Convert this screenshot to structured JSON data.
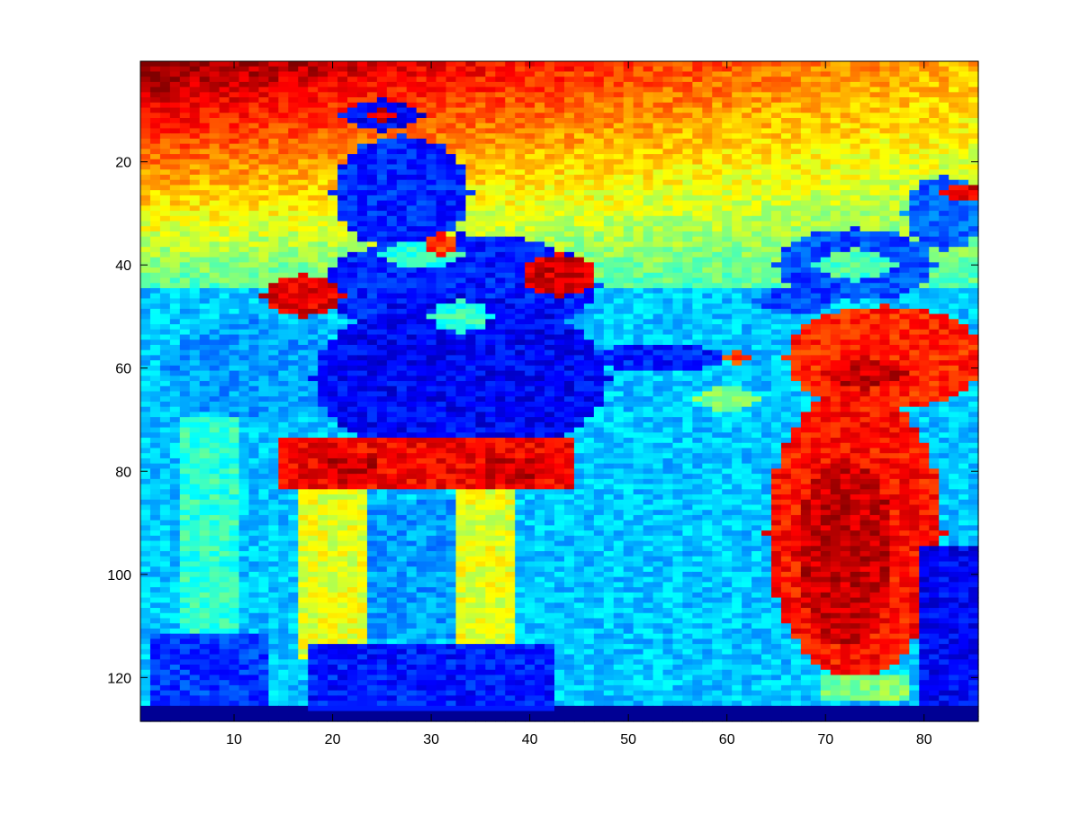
{
  "chart_data": {
    "type": "heatmap",
    "title": "",
    "xlabel": "",
    "ylabel": "",
    "colormap": "jet",
    "grid": false,
    "legend": "none",
    "xlim": [
      0.5,
      85.5
    ],
    "ylim": [
      128.5,
      0.5
    ],
    "y_direction": "reversed",
    "cols": 85,
    "rows": 128,
    "x_ticks": [
      10,
      20,
      30,
      40,
      50,
      60,
      70,
      80
    ],
    "y_ticks": [
      20,
      40,
      60,
      80,
      100,
      120
    ],
    "value_range": [
      0,
      1
    ],
    "background_gradient": {
      "top_left": 1.0,
      "top_right": 0.7,
      "horizon_row": 44,
      "horizon_value": 0.46,
      "lower_value": 0.35
    },
    "regions": [
      {
        "kind": "rect",
        "c": [
          1,
          85
        ],
        "r": [
          45,
          128
        ],
        "v": 0.32
      },
      {
        "kind": "rect",
        "c": [
          1,
          85
        ],
        "r": [
          126,
          128
        ],
        "v": 0.02
      },
      {
        "kind": "ellipse",
        "cx": 12,
        "cy": 60,
        "rx": 9,
        "ry": 10,
        "v": 0.28
      },
      {
        "kind": "ellipse",
        "cx": 33,
        "cy": 44,
        "rx": 14,
        "ry": 10,
        "v": 0.15
      },
      {
        "kind": "ellipse",
        "cx": 33,
        "cy": 62,
        "rx": 15,
        "ry": 16,
        "v": 0.12
      },
      {
        "kind": "ellipse",
        "cx": 27,
        "cy": 26,
        "rx": 7,
        "ry": 11,
        "v": 0.16
      },
      {
        "kind": "ellipse",
        "cx": 25,
        "cy": 11,
        "rx": 4,
        "ry": 3,
        "v": 0.12
      },
      {
        "kind": "ellipse",
        "cx": 33,
        "cy": 50,
        "rx": 3,
        "ry": 3,
        "v": 0.42
      },
      {
        "kind": "ellipse",
        "cx": 29,
        "cy": 38,
        "rx": 4,
        "ry": 2.5,
        "v": 0.42
      },
      {
        "kind": "ellipse",
        "cx": 17,
        "cy": 46,
        "rx": 4,
        "ry": 4,
        "v": 0.9
      },
      {
        "kind": "ellipse",
        "cx": 43,
        "cy": 42,
        "rx": 3.5,
        "ry": 4,
        "v": 0.92
      },
      {
        "kind": "ellipse",
        "cx": 25,
        "cy": 11,
        "rx": 1.8,
        "ry": 1,
        "v": 0.9
      },
      {
        "kind": "ellipse",
        "cx": 31,
        "cy": 36,
        "rx": 1.5,
        "ry": 2.5,
        "v": 0.82
      },
      {
        "kind": "ellipse",
        "cx": 53,
        "cy": 58,
        "rx": 7,
        "ry": 2.5,
        "v": 0.15
      },
      {
        "kind": "ellipse",
        "cx": 60,
        "cy": 66,
        "rx": 3,
        "ry": 2.5,
        "v": 0.5
      },
      {
        "kind": "ellipse",
        "cx": 61,
        "cy": 58,
        "rx": 1.2,
        "ry": 1,
        "v": 0.8
      },
      {
        "kind": "rect",
        "c": [
          15,
          44
        ],
        "r": [
          74,
          83
        ],
        "v": 0.88
      },
      {
        "kind": "rect",
        "c": [
          20,
          24
        ],
        "r": [
          77,
          82
        ],
        "v": 0.93
      },
      {
        "kind": "rect",
        "c": [
          36,
          40
        ],
        "r": [
          78,
          82
        ],
        "v": 0.93
      },
      {
        "kind": "rect",
        "c": [
          17,
          23
        ],
        "r": [
          84,
          116
        ],
        "v": 0.6
      },
      {
        "kind": "rect",
        "c": [
          33,
          38
        ],
        "r": [
          84,
          116
        ],
        "v": 0.6
      },
      {
        "kind": "rect",
        "c": [
          24,
          32
        ],
        "r": [
          86,
          112
        ],
        "v": 0.28
      },
      {
        "kind": "rect",
        "c": [
          5,
          10
        ],
        "r": [
          70,
          122
        ],
        "v": 0.42
      },
      {
        "kind": "rect",
        "c": [
          2,
          13
        ],
        "r": [
          112,
          125
        ],
        "v": 0.18
      },
      {
        "kind": "rect",
        "c": [
          18,
          42
        ],
        "r": [
          114,
          126
        ],
        "v": 0.15
      },
      {
        "kind": "ellipse",
        "cx": 73,
        "cy": 40,
        "rx": 8,
        "ry": 7,
        "v": 0.2
      },
      {
        "kind": "ellipse",
        "cx": 73,
        "cy": 40,
        "rx": 4,
        "ry": 3,
        "v": 0.45
      },
      {
        "kind": "ellipse",
        "cx": 82,
        "cy": 30,
        "rx": 4,
        "ry": 7,
        "v": 0.22
      },
      {
        "kind": "ellipse",
        "cx": 84,
        "cy": 26,
        "rx": 2,
        "ry": 1.5,
        "v": 0.9
      },
      {
        "kind": "ellipse",
        "cx": 67,
        "cy": 47,
        "rx": 4,
        "ry": 2.5,
        "v": 0.2
      },
      {
        "kind": "ellipse",
        "cx": 76,
        "cy": 58,
        "rx": 10,
        "ry": 10,
        "v": 0.84
      },
      {
        "kind": "ellipse",
        "cx": 74,
        "cy": 61,
        "rx": 4,
        "ry": 3,
        "v": 0.93
      },
      {
        "kind": "ellipse",
        "cx": 73,
        "cy": 92,
        "rx": 9,
        "ry": 28,
        "v": 0.86
      },
      {
        "kind": "ellipse",
        "cx": 72,
        "cy": 96,
        "rx": 5,
        "ry": 18,
        "v": 0.93
      },
      {
        "kind": "rect",
        "c": [
          80,
          85
        ],
        "r": [
          95,
          125
        ],
        "v": 0.12
      },
      {
        "kind": "rect",
        "c": [
          70,
          78
        ],
        "r": [
          120,
          124
        ],
        "v": 0.5
      }
    ]
  }
}
